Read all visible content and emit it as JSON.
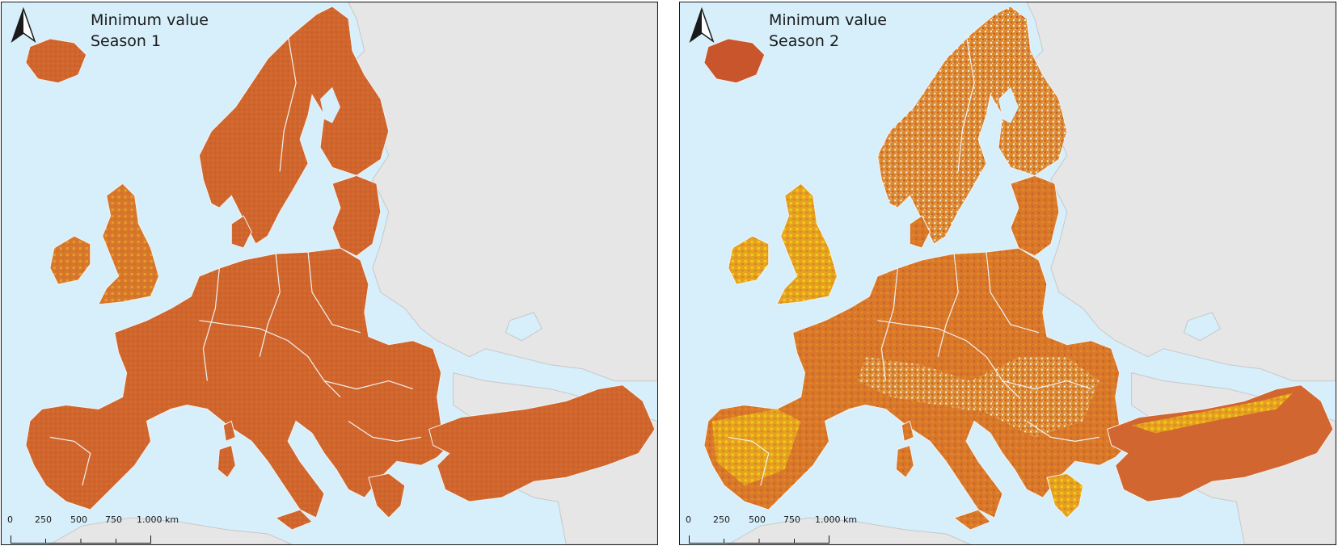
{
  "colors": {
    "sea": "#d6effb",
    "land_outside": "#e6e6e6",
    "border_outside": "#c8c8c8",
    "raster_main": "#d0662e",
    "raster_light": "#e8921f",
    "raster_yellow": "#e8c21f",
    "border_inside": "#f2f2f2"
  },
  "panels": [
    {
      "title_line1": "Minimum value",
      "title_line2": "Season 1",
      "north_arrow_icon": "north-arrow-icon",
      "scalebar": {
        "ticks": [
          "0",
          "250",
          "500",
          "750",
          "1.000 km"
        ]
      }
    },
    {
      "title_line1": "Minimum value",
      "title_line2": "Season 2",
      "north_arrow_icon": "north-arrow-icon",
      "scalebar": {
        "ticks": [
          "0",
          "250",
          "500",
          "750",
          "1.000 km"
        ]
      }
    }
  ]
}
